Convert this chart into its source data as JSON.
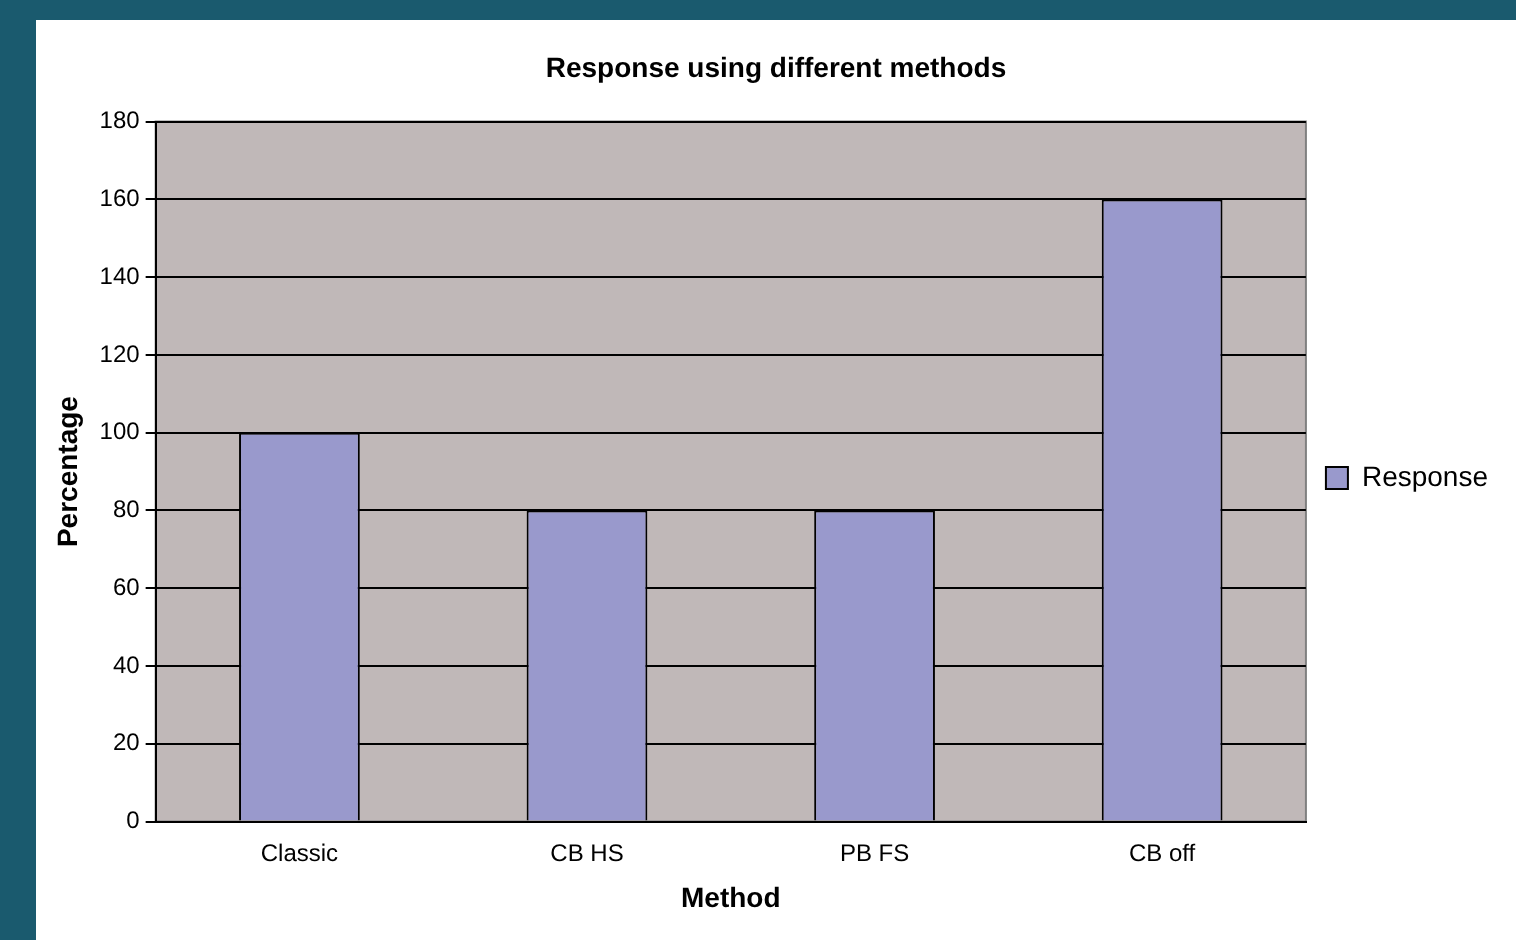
{
  "chart_data": {
    "type": "bar",
    "title": "Response using different methods",
    "xlabel": "Method",
    "ylabel": "Percentage",
    "categories": [
      "Classic",
      "CB HS",
      "PB FS",
      "CB off"
    ],
    "series": [
      {
        "name": "Response",
        "color": "#9999cc",
        "values": [
          100,
          80,
          80,
          160
        ]
      }
    ],
    "ylim": [
      0,
      180
    ],
    "yticks": [
      0,
      20,
      40,
      60,
      80,
      100,
      120,
      140,
      160,
      180
    ],
    "grid": "y",
    "legend": "right"
  }
}
